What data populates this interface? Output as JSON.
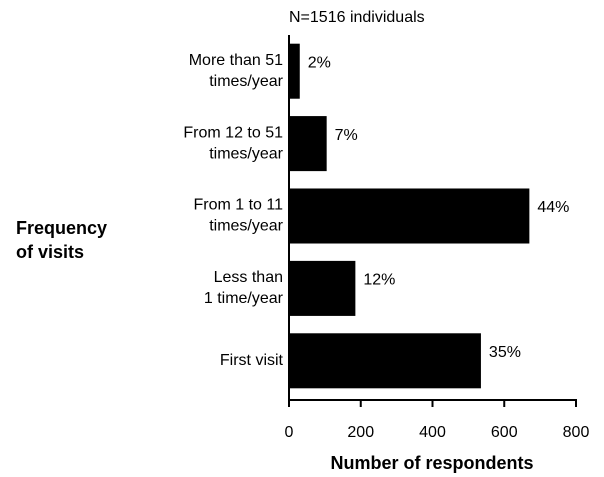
{
  "chart_data": {
    "type": "barh",
    "title": "N=1516 individuals",
    "ylabel": [
      "Frequency",
      "of visits"
    ],
    "xlabel": "Number of respondents",
    "categories": [
      [
        "More than 51",
        "times/year"
      ],
      [
        "From 12 to 51",
        "times/year"
      ],
      [
        "From 1 to 11",
        "times/year"
      ],
      [
        "Less than",
        "1 time/year"
      ],
      [
        "First visit"
      ]
    ],
    "values": [
      30,
      105,
      670,
      185,
      535
    ],
    "value_labels": [
      "2%",
      "7%",
      "44%",
      "12%",
      "35%"
    ],
    "color": "#000000",
    "xlim": [
      0,
      800
    ],
    "xticks": [
      0,
      200,
      400,
      600,
      800
    ],
    "grid": false
  }
}
